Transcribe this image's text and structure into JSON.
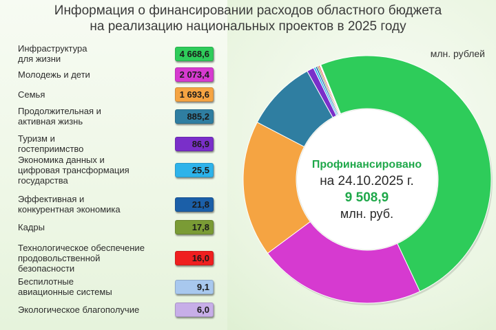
{
  "title_line1": "Информация о финансировании расходов областного бюджета",
  "title_line2": "на реализацию национальных проектов в 2025 году",
  "unit": "млн. рублей",
  "center": {
    "line1": "Профинансировано",
    "line2": "на 24.10.2025  г.",
    "line3": "9 508,9",
    "line4": "млн. руб."
  },
  "chart_data": {
    "type": "pie",
    "title": "Информация о финансировании расходов областного бюджета на реализацию национальных проектов в 2025 году",
    "unit": "млн. рублей",
    "total_label": "9 508,9",
    "categories": [
      "Инфраструктура для жизни",
      "Молодежь и дети",
      "Семья",
      "Продолжительная и активная жизнь",
      "Туризм и гостеприимство",
      "Экономика данных и цифровая трансформация государства",
      "Эффективная и конкурентная экономика",
      "Кадры",
      "Технологическое обеспечение продовольственной безопасности",
      "Беспилотные авиационные системы",
      "Экологическое благополучие"
    ],
    "values": [
      4668.6,
      2073.4,
      1693.6,
      885.2,
      86.9,
      25.5,
      21.8,
      17.8,
      16.0,
      9.1,
      6.0
    ],
    "value_labels": [
      "4 668,6",
      "2 073,4",
      "1 693,6",
      "885,2",
      "86,9",
      "25,5",
      "21,8",
      "17,8",
      "16,0",
      "9,1",
      "6,0"
    ],
    "label_lines": [
      [
        "Инфраструктура",
        "для жизни"
      ],
      [
        "Молодежь и дети"
      ],
      [
        "Семья"
      ],
      [
        "Продолжительная и",
        "активная жизнь"
      ],
      [
        "Туризм и",
        "гостеприимство"
      ],
      [
        "Экономика данных и",
        "цифровая трансформация",
        "государства"
      ],
      [
        "Эффективная и",
        "конкурентная экономика"
      ],
      [
        "Кадры"
      ],
      [
        "Технологическое обеспечение",
        "продовольственной",
        "безопасности"
      ],
      [
        "Беспилотные",
        "авиационные системы"
      ],
      [
        "Экологическое благополучие"
      ]
    ],
    "colors": [
      "#2ecc5a",
      "#d63ad0",
      "#f5a442",
      "#2f7ea1",
      "#7a2fc9",
      "#2db3ea",
      "#1b5fa8",
      "#7a9b35",
      "#ef1f1f",
      "#a8c8ee",
      "#c7aee8"
    ]
  }
}
